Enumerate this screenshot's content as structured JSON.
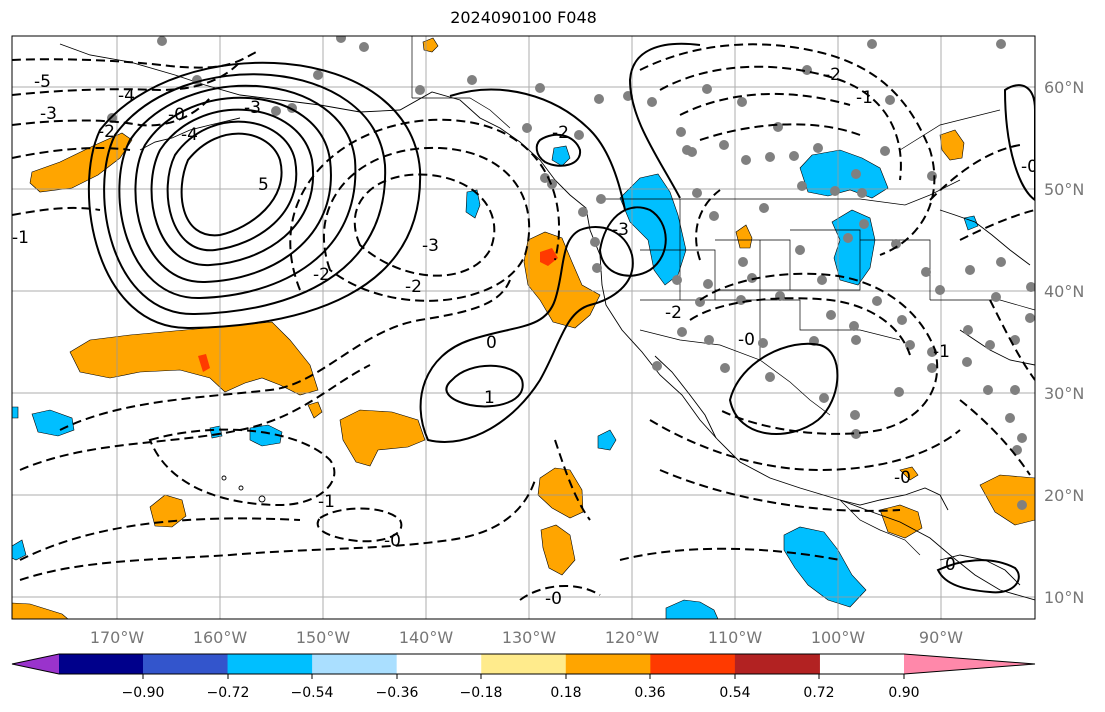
{
  "title": "2024090100 F048",
  "lat_labels": [
    "60°N",
    "50°N",
    "40°N",
    "30°N",
    "20°N",
    "10°N"
  ],
  "lon_labels": [
    "170°W",
    "160°W",
    "150°W",
    "140°W",
    "130°W",
    "120°W",
    "110°W",
    "100°W",
    "90°W"
  ],
  "colorbar": {
    "ticks": [
      "−0.90",
      "−0.72",
      "−0.54",
      "−0.36",
      "−0.18",
      "0.18",
      "0.36",
      "0.54",
      "0.72",
      "0.90"
    ],
    "colors": [
      "#9a33cc",
      "#00008b",
      "#3355cc",
      "#00bfff",
      "#aadfff",
      "#ffffff",
      "#ffeb8c",
      "#ffa500",
      "#ff3a00",
      "#b22222",
      "#ff88aa"
    ]
  },
  "contour_labels": [
    "-5",
    "-4",
    "-3",
    "-2",
    "-0",
    "-1",
    "5",
    "-4",
    "-3",
    "-2",
    "-2",
    "-2",
    "-3",
    "-2",
    "-1",
    "0",
    "1",
    "-1",
    "-0",
    "-0",
    "-0",
    "-3",
    "-2",
    "-1",
    "-0",
    "0",
    "-0"
  ]
}
